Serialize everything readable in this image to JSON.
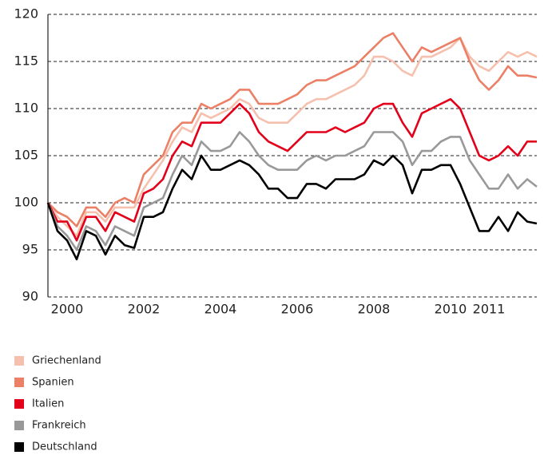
{
  "chart_data": {
    "type": "line",
    "x": [
      1999.5,
      1999.75,
      2000,
      2000.25,
      2000.5,
      2000.75,
      2001,
      2001.25,
      2001.5,
      2001.75,
      2002,
      2002.25,
      2002.5,
      2002.75,
      2003,
      2003.25,
      2003.5,
      2003.75,
      2004,
      2004.25,
      2004.5,
      2004.75,
      2005,
      2005.25,
      2005.5,
      2005.75,
      2006,
      2006.25,
      2006.5,
      2006.75,
      2007,
      2007.25,
      2007.5,
      2007.75,
      2008,
      2008.25,
      2008.5,
      2008.75,
      2009,
      2009.25,
      2009.5,
      2009.75,
      2010,
      2010.25,
      2010.5,
      2010.75,
      2011,
      2011.25,
      2011.5,
      2011.75,
      2012,
      2012.25
    ],
    "series": [
      {
        "name": "Griechenland",
        "color": "#f6c0ae",
        "values": [
          100,
          98.5,
          97.5,
          96.5,
          99,
          99,
          98,
          99.5,
          99.5,
          99.5,
          101.5,
          103,
          104.5,
          106.5,
          108,
          107.5,
          109.5,
          109,
          109.5,
          110,
          111,
          110.5,
          109,
          108.5,
          108.5,
          108.5,
          109.5,
          110.5,
          111,
          111,
          111.5,
          112,
          112.5,
          113.5,
          115.5,
          115.5,
          115,
          114,
          113.5,
          115.5,
          115.5,
          116,
          116.5,
          117.5,
          115.5,
          114.5,
          114,
          115,
          116,
          115.5,
          116,
          115.5
        ]
      },
      {
        "name": "Spanien",
        "color": "#ec8066",
        "values": [
          100,
          99,
          98.5,
          97.5,
          99.5,
          99.5,
          98.5,
          100,
          100.5,
          100,
          103,
          104,
          105,
          107.5,
          108.5,
          108.5,
          110.5,
          110,
          110.5,
          111,
          112,
          112,
          110.5,
          110.5,
          110.5,
          111,
          111.5,
          112.5,
          113,
          113,
          113.5,
          114,
          114.5,
          115.5,
          116.5,
          117.5,
          118,
          116.5,
          115,
          116.5,
          116,
          116.5,
          117,
          117.5,
          115,
          113,
          112,
          113,
          114.5,
          113.5,
          113.5,
          113.3
        ]
      },
      {
        "name": "Italien",
        "color": "#e2001a",
        "values": [
          100,
          98,
          98,
          96,
          98.5,
          98.5,
          97,
          99,
          98.5,
          98,
          101,
          101.5,
          102.5,
          105,
          106.5,
          106,
          108.5,
          108.5,
          108.5,
          109.5,
          110.5,
          109.5,
          107.5,
          106.5,
          106,
          105.5,
          106.5,
          107.5,
          107.5,
          107.5,
          108,
          107.5,
          108,
          108.5,
          110,
          110.5,
          110.5,
          108.5,
          107,
          109.5,
          110,
          110.5,
          111,
          110,
          107.5,
          105,
          104.5,
          105,
          106,
          105,
          106.5,
          106.5
        ]
      },
      {
        "name": "Frankreich",
        "color": "#999999",
        "values": [
          100,
          97.5,
          96.5,
          95,
          97.5,
          97,
          95.5,
          97.5,
          97,
          96.5,
          99.5,
          100,
          100.5,
          103,
          105,
          104,
          106.5,
          105.5,
          105.5,
          106,
          107.5,
          106.5,
          105,
          104,
          103.5,
          103.5,
          103.5,
          104.5,
          105,
          104.5,
          105,
          105,
          105.5,
          106,
          107.5,
          107.5,
          107.5,
          106.5,
          104,
          105.5,
          105.5,
          106.5,
          107,
          107,
          104.5,
          103,
          101.5,
          101.5,
          103,
          101.5,
          102.5,
          101.7
        ]
      },
      {
        "name": "Deutschland",
        "color": "#000000",
        "values": [
          100,
          97,
          96,
          94,
          97,
          96.5,
          94.5,
          96.5,
          95.5,
          95.2,
          98.5,
          98.5,
          99,
          101.5,
          103.5,
          102.5,
          105,
          103.5,
          103.5,
          104,
          104.5,
          104,
          103,
          101.5,
          101.5,
          100.5,
          100.5,
          102,
          102,
          101.5,
          102.5,
          102.5,
          102.5,
          103,
          104.5,
          104,
          105,
          104,
          101,
          103.5,
          103.5,
          104,
          104,
          102,
          99.5,
          97,
          97,
          98.5,
          97,
          99,
          98,
          97.8
        ]
      }
    ],
    "xlim": [
      1999.5,
      2012.25
    ],
    "xticks": [
      2000,
      2002,
      2004,
      2006,
      2008,
      2010,
      2011
    ],
    "ylim": [
      90,
      120
    ],
    "yticks": [
      90,
      95,
      100,
      105,
      110,
      115,
      120
    ],
    "grid": true
  }
}
